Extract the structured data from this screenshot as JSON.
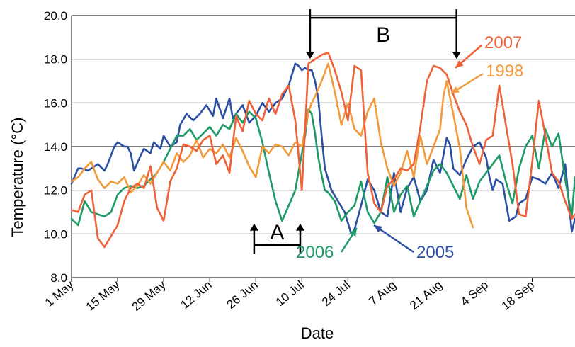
{
  "chart_data": {
    "type": "line",
    "title": "",
    "xlabel": "Date",
    "ylabel": "Temperature (°C)",
    "ylim": [
      8.0,
      20.0
    ],
    "yticks": [
      "8.0",
      "10.0",
      "12.0",
      "14.0",
      "16.0",
      "18.0",
      "20.0"
    ],
    "xlim": [
      "May 1",
      "Oct 1"
    ],
    "xticks": [
      {
        "label": "1 May",
        "day": 0
      },
      {
        "label": "15 May",
        "day": 14
      },
      {
        "label": "29 May",
        "day": 28
      },
      {
        "label": "12 Jun",
        "day": 42
      },
      {
        "label": "26 Jun",
        "day": 56
      },
      {
        "label": "10 Jul",
        "day": 70
      },
      {
        "label": "24 Jul",
        "day": 84
      },
      {
        "label": "7 Aug",
        "day": 98
      },
      {
        "label": "21 Aug",
        "day": 112
      },
      {
        "label": "4 Sep",
        "day": 126
      },
      {
        "label": "18 Sep",
        "day": 140
      }
    ],
    "grid": true,
    "series": [
      {
        "name": "2005",
        "color": "#2a4fa3",
        "x": [
          0,
          2,
          3,
          5,
          6,
          8,
          10,
          11,
          13,
          14,
          16,
          17,
          18,
          19,
          21,
          22,
          24,
          25,
          27,
          28,
          30,
          32,
          33,
          35,
          37,
          39,
          41,
          43,
          44,
          46,
          48,
          49,
          51,
          52,
          54,
          56,
          58,
          60,
          62,
          64,
          66,
          68,
          69,
          70,
          71,
          72,
          73,
          74,
          75,
          76,
          77,
          79,
          81,
          83,
          85,
          86,
          88,
          90,
          92,
          94,
          96,
          98,
          100,
          102,
          104,
          106,
          108,
          110,
          112,
          114,
          115,
          116,
          118,
          120,
          122,
          124,
          126,
          127,
          128,
          129,
          131,
          133,
          135,
          136,
          138,
          140,
          142,
          144,
          146,
          148,
          150,
          152,
          153
        ],
        "y": [
          12.3,
          13.0,
          13.0,
          12.9,
          13.0,
          13.2,
          12.9,
          13.2,
          14.0,
          14.2,
          14.0,
          14.0,
          13.7,
          12.9,
          13.6,
          13.9,
          13.7,
          14.2,
          13.9,
          14.5,
          14.0,
          14.2,
          15.0,
          15.5,
          15.2,
          15.5,
          15.9,
          15.4,
          16.2,
          15.3,
          16.2,
          15.3,
          15.7,
          15.9,
          15.1,
          15.4,
          16.0,
          15.6,
          16.0,
          16.2,
          16.8,
          17.8,
          17.7,
          17.5,
          17.6,
          17.5,
          17.5,
          17.0,
          16.2,
          14.5,
          13.0,
          12.0,
          11.5,
          11.0,
          10.0,
          10.2,
          11.3,
          12.5,
          12.0,
          11.0,
          10.8,
          12.8,
          11.0,
          12.1,
          12.6,
          11.5,
          12.0,
          13.4,
          12.8,
          14.4,
          14.1,
          13.0,
          12.7,
          13.4,
          14.0,
          14.2,
          13.5,
          12.6,
          12.0,
          12.5,
          12.3,
          10.6,
          10.8,
          11.4,
          11.6,
          12.6,
          12.5,
          12.3,
          12.8,
          12.1,
          13.2,
          10.1,
          10.7
        ]
      },
      {
        "name": "2006",
        "color": "#1e9a66",
        "x": [
          0,
          2,
          4,
          6,
          8,
          10,
          12,
          14,
          16,
          18,
          20,
          22,
          24,
          26,
          28,
          30,
          32,
          34,
          36,
          38,
          40,
          42,
          44,
          46,
          48,
          50,
          52,
          54,
          56,
          58,
          60,
          62,
          64,
          66,
          68,
          70,
          71,
          72,
          73,
          74,
          75,
          76,
          77,
          78,
          80,
          82,
          84,
          86,
          88,
          90,
          92,
          94,
          96,
          98,
          100,
          102,
          104,
          106,
          108,
          110,
          112,
          114,
          116,
          118,
          120,
          122,
          124,
          126,
          128,
          130,
          132,
          134,
          136,
          138,
          140,
          142,
          144,
          146,
          148,
          150,
          152,
          153
        ],
        "y": [
          10.7,
          10.4,
          11.5,
          11.0,
          10.9,
          10.8,
          11.0,
          11.8,
          12.1,
          12.2,
          12.1,
          12.2,
          12.5,
          12.8,
          13.3,
          13.9,
          14.5,
          14.5,
          14.8,
          14.3,
          14.6,
          14.9,
          14.5,
          15.0,
          14.8,
          15.5,
          15.1,
          15.6,
          15.3,
          14.2,
          12.8,
          11.5,
          10.6,
          11.3,
          12.0,
          13.7,
          14.5,
          15.7,
          15.5,
          14.6,
          13.5,
          12.7,
          12.0,
          11.9,
          11.5,
          10.6,
          11.0,
          11.3,
          12.4,
          11.0,
          10.5,
          11.0,
          12.6,
          11.0,
          11.8,
          12.2,
          10.8,
          11.5,
          12.2,
          12.9,
          13.2,
          12.8,
          12.2,
          11.6,
          12.7,
          11.6,
          12.4,
          12.8,
          13.2,
          13.6,
          12.4,
          11.4,
          13.0,
          14.0,
          14.5,
          13.0,
          14.8,
          14.0,
          14.6,
          12.5,
          10.8,
          12.6
        ]
      },
      {
        "name": "1998",
        "color": "#f39b3c",
        "x": [
          0,
          2,
          4,
          6,
          8,
          10,
          12,
          14,
          16,
          18,
          20,
          22,
          24,
          26,
          28,
          30,
          32,
          34,
          36,
          38,
          40,
          42,
          44,
          46,
          48,
          50,
          52,
          54,
          56,
          58,
          60,
          62,
          64,
          66,
          68,
          70,
          72,
          73,
          74,
          76,
          78,
          80,
          82,
          84,
          86,
          88,
          90,
          92,
          94,
          96,
          98,
          100,
          102,
          104,
          106,
          108,
          110,
          112,
          113,
          114,
          116,
          118,
          120,
          122
        ],
        "y": [
          12.4,
          12.6,
          13.0,
          13.3,
          12.5,
          12.1,
          12.4,
          12.3,
          12.6,
          11.9,
          12.2,
          12.7,
          12.3,
          12.8,
          13.3,
          12.9,
          13.7,
          13.3,
          13.6,
          14.3,
          13.5,
          13.9,
          13.7,
          14.1,
          13.5,
          14.4,
          13.8,
          13.1,
          12.6,
          14.0,
          13.7,
          14.1,
          14.0,
          13.6,
          14.2,
          14.0,
          15.6,
          16.0,
          16.3,
          17.0,
          17.8,
          16.5,
          15.0,
          16.0,
          14.8,
          14.5,
          15.6,
          16.2,
          14.2,
          13.0,
          12.2,
          12.8,
          13.8,
          12.6,
          14.5,
          13.2,
          14.0,
          14.8,
          16.3,
          17.0,
          15.5,
          13.9,
          11.2,
          10.3
        ]
      },
      {
        "name": "2007",
        "color": "#ef6237",
        "x": [
          0,
          2,
          4,
          6,
          8,
          10,
          12,
          14,
          16,
          18,
          20,
          22,
          24,
          26,
          28,
          30,
          32,
          34,
          36,
          38,
          40,
          42,
          44,
          46,
          48,
          50,
          52,
          54,
          56,
          58,
          60,
          62,
          64,
          66,
          68,
          70,
          72,
          74,
          76,
          78,
          80,
          82,
          84,
          86,
          88,
          90,
          92,
          94,
          96,
          98,
          100,
          102,
          104,
          106,
          108,
          110,
          112,
          114,
          116,
          118,
          120,
          122,
          124,
          126,
          128,
          130,
          132,
          134,
          136,
          138,
          140,
          142,
          144,
          146,
          148,
          150,
          152,
          153
        ],
        "y": [
          11.1,
          11.0,
          11.8,
          12.0,
          9.8,
          9.4,
          9.9,
          10.4,
          11.5,
          12.1,
          12.3,
          12.1,
          13.1,
          11.2,
          10.6,
          12.4,
          13.0,
          14.1,
          14.0,
          13.8,
          14.3,
          14.5,
          13.2,
          13.6,
          12.8,
          15.4,
          14.7,
          16.1,
          15.5,
          15.2,
          16.2,
          15.5,
          16.4,
          16.8,
          15.2,
          12.0,
          17.8,
          18.0,
          18.2,
          18.3,
          17.5,
          16.5,
          15.2,
          17.7,
          17.5,
          12.8,
          11.4,
          11.0,
          12.2,
          12.5,
          13.0,
          12.9,
          13.2,
          14.9,
          17.0,
          17.7,
          17.6,
          17.3,
          16.4,
          15.6,
          15.0,
          14.0,
          13.2,
          14.3,
          14.5,
          16.8,
          15.0,
          13.2,
          10.9,
          10.8,
          13.3,
          16.1,
          14.5,
          12.8,
          12.4,
          11.5,
          10.7,
          10.9
        ]
      }
    ],
    "annotations": [
      {
        "text": "A",
        "from_day": 55.5,
        "to_day": 69.5,
        "y": 9.5,
        "arrows": "up"
      },
      {
        "text": "B",
        "from_day": 72.5,
        "to_day": 117.0,
        "y": 19.9,
        "arrows": "down"
      }
    ],
    "series_labels": [
      {
        "text": "2007",
        "series": "2007"
      },
      {
        "text": "1998",
        "series": "1998"
      },
      {
        "text": "2006",
        "series": "2006"
      },
      {
        "text": "2005",
        "series": "2005"
      }
    ]
  }
}
